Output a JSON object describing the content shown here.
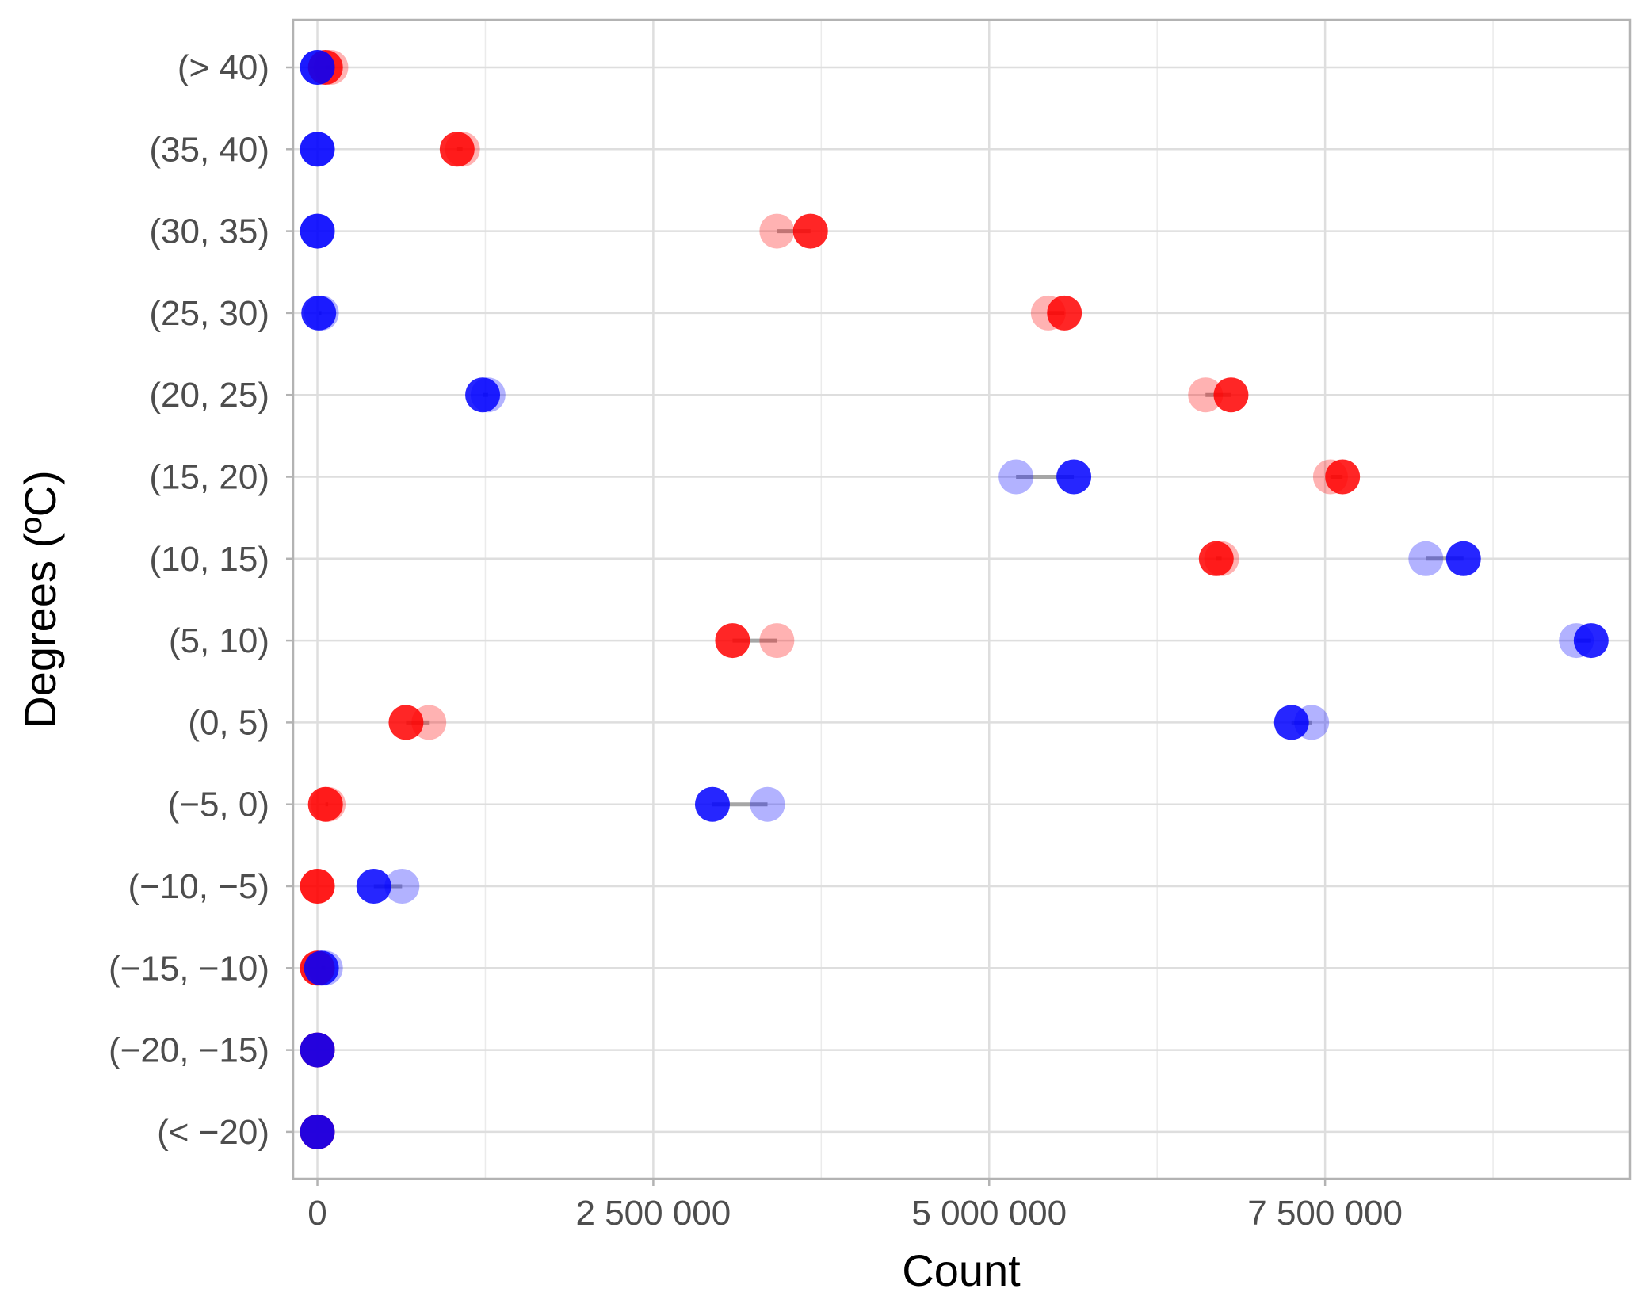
{
  "chart_data": {
    "type": "scatter",
    "subtype": "dumbbell",
    "xlabel": "Count",
    "ylabel": "Degrees (ºC)",
    "title": "",
    "xlim": [
      -180000,
      9770000
    ],
    "x_ticks": [
      0,
      2500000,
      5000000,
      7500000
    ],
    "x_tick_labels": [
      "0",
      "2 500 000",
      "5 000 000",
      "7 500 000"
    ],
    "categories": [
      "(> 40)",
      "(35, 40)",
      "(30, 35)",
      "(25, 30)",
      "(20, 25)",
      "(15, 20)",
      "(10, 15)",
      "(5, 10)",
      "(0, 5)",
      "(−5, 0)",
      "(−10, −5)",
      "(−15, −10)",
      "(−20, −15)",
      "(< −20)"
    ],
    "grid": true,
    "legend": "none",
    "series": [
      {
        "color": "#ff0000",
        "start_values": [
          100000,
          1080000,
          3420000,
          5440000,
          6610000,
          7540000,
          6730000,
          3420000,
          830000,
          80000,
          0,
          0,
          0,
          0
        ],
        "end_values": [
          60000,
          1040000,
          3670000,
          5560000,
          6800000,
          7630000,
          6690000,
          3090000,
          660000,
          60000,
          0,
          0,
          0,
          0
        ]
      },
      {
        "color": "#0000ff",
        "start_values": [
          0,
          0,
          0,
          30000,
          1270000,
          5200000,
          8250000,
          9370000,
          7400000,
          3350000,
          630000,
          60000,
          0,
          0
        ],
        "end_values": [
          0,
          0,
          0,
          10000,
          1230000,
          5630000,
          8530000,
          9480000,
          7250000,
          2940000,
          420000,
          30000,
          0,
          0
        ]
      }
    ]
  }
}
